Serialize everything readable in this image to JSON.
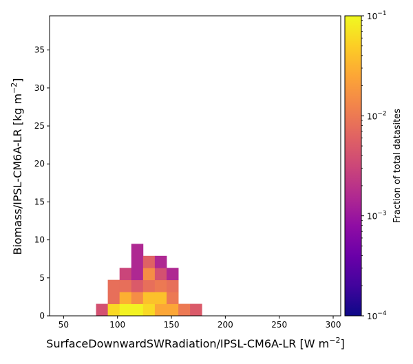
{
  "chart_data": {
    "type": "heatmap",
    "title": "",
    "xlabel": "SurfaceDownwardSWRadiation/IPSL-CM6A-LR [W m",
    "xlabel_sup": "−2",
    "xlabel_close": "]",
    "ylabel": "Biomass/IPSL-CM6A-LR [kg m",
    "ylabel_sup": "−2",
    "ylabel_close": "]",
    "xlim": [
      37,
      307
    ],
    "ylim": [
      0,
      39.5
    ],
    "xticks": [
      50,
      100,
      150,
      200,
      250,
      300
    ],
    "yticks": [
      0,
      5,
      10,
      15,
      20,
      25,
      30,
      35
    ],
    "bin_width_x": 10.9,
    "bin_height_y": 1.58,
    "colorbar": {
      "label": "Fraction of total datasites",
      "scale": "log",
      "range": [
        0.0001,
        0.1
      ],
      "colormap": "plasma",
      "tick_base": "10",
      "tick_exponents": [
        "−4",
        "−3",
        "−2",
        "−1"
      ]
    },
    "cells": [
      {
        "x0": 80.1,
        "y0": 0,
        "value": 0.004
      },
      {
        "x0": 91.0,
        "y0": 0,
        "value": 0.06
      },
      {
        "x0": 101.9,
        "y0": 0,
        "value": 0.09
      },
      {
        "x0": 112.8,
        "y0": 0,
        "value": 0.09
      },
      {
        "x0": 123.7,
        "y0": 0,
        "value": 0.06
      },
      {
        "x0": 134.6,
        "y0": 0,
        "value": 0.025
      },
      {
        "x0": 145.5,
        "y0": 0,
        "value": 0.025
      },
      {
        "x0": 156.4,
        "y0": 0,
        "value": 0.01
      },
      {
        "x0": 167.3,
        "y0": 0,
        "value": 0.005
      },
      {
        "x0": 91.0,
        "y0": 1.58,
        "value": 0.008
      },
      {
        "x0": 101.9,
        "y0": 1.58,
        "value": 0.03
      },
      {
        "x0": 112.8,
        "y0": 1.58,
        "value": 0.015
      },
      {
        "x0": 123.7,
        "y0": 1.58,
        "value": 0.04
      },
      {
        "x0": 134.6,
        "y0": 1.58,
        "value": 0.04
      },
      {
        "x0": 145.5,
        "y0": 1.58,
        "value": 0.01
      },
      {
        "x0": 91.0,
        "y0": 3.16,
        "value": 0.008
      },
      {
        "x0": 101.9,
        "y0": 3.16,
        "value": 0.008
      },
      {
        "x0": 112.8,
        "y0": 3.16,
        "value": 0.005
      },
      {
        "x0": 123.7,
        "y0": 3.16,
        "value": 0.008
      },
      {
        "x0": 134.6,
        "y0": 3.16,
        "value": 0.01
      },
      {
        "x0": 145.5,
        "y0": 3.16,
        "value": 0.008
      },
      {
        "x0": 101.9,
        "y0": 4.74,
        "value": 0.003
      },
      {
        "x0": 112.8,
        "y0": 4.74,
        "value": 0.0015
      },
      {
        "x0": 123.7,
        "y0": 4.74,
        "value": 0.015
      },
      {
        "x0": 134.6,
        "y0": 4.74,
        "value": 0.004
      },
      {
        "x0": 145.5,
        "y0": 4.74,
        "value": 0.0015
      },
      {
        "x0": 112.8,
        "y0": 6.32,
        "value": 0.0015
      },
      {
        "x0": 123.7,
        "y0": 6.32,
        "value": 0.006
      },
      {
        "x0": 134.6,
        "y0": 6.32,
        "value": 0.0015
      },
      {
        "x0": 112.8,
        "y0": 7.9,
        "value": 0.0015
      }
    ]
  }
}
